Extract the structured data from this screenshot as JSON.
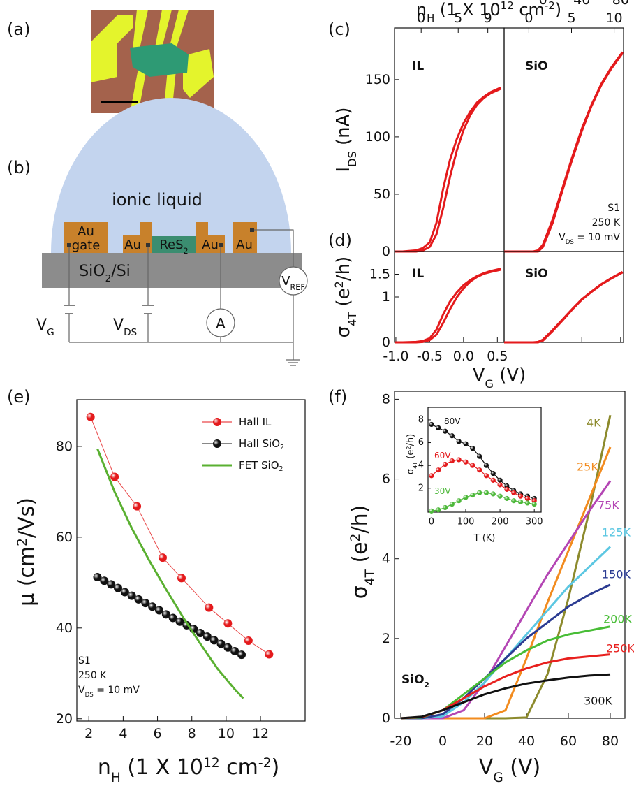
{
  "panel_a": {
    "label": "(a)"
  },
  "panel_b": {
    "label": "(b)",
    "liquid": "ionic liquid",
    "gate_metal": "Au",
    "gate": "gate",
    "electrodes": [
      "Au",
      "Au",
      "Au"
    ],
    "channel": [
      "ReS",
      {
        "text": "2",
        "shift": "sub"
      }
    ],
    "substrate": [
      "SiO",
      {
        "text": "2",
        "shift": "sub"
      },
      "/Si"
    ],
    "vg": [
      "V",
      {
        "text": "G",
        "shift": "sub"
      }
    ],
    "vds": [
      "V",
      {
        "text": "DS",
        "shift": "sub"
      }
    ],
    "ammeter": "A",
    "vref": [
      "V",
      {
        "text": "REF",
        "shift": "sub"
      }
    ]
  },
  "chart_data": [
    {
      "type": "line",
      "panel_label": "(c)",
      "text": "IL",
      "ylabel": [
        "I",
        {
          "text": "DS",
          "shift": "sub"
        },
        " (nA)"
      ],
      "x2label": [
        "n",
        {
          "text": "H",
          "shift": "sub"
        },
        " (1 X 10",
        {
          "text": "12",
          "shift": "sup"
        },
        " cm",
        {
          "text": "-2",
          "shift": "sup"
        },
        ")"
      ],
      "x": [
        -1.02,
        -0.9,
        -0.7,
        -0.6,
        -0.5,
        -0.4,
        -0.3,
        -0.2,
        -0.1,
        0,
        0.1,
        0.2,
        0.3,
        0.4,
        0.55
      ],
      "series": [
        {
          "color": "#e41a1c",
          "values": [
            0,
            0,
            1,
            3,
            8,
            25,
            55,
            80,
            98,
            112,
            122,
            130,
            135,
            139,
            143
          ]
        },
        {
          "color": "#e41a1c",
          "values": [
            0,
            0,
            0,
            1,
            4,
            15,
            38,
            65,
            88,
            106,
            119,
            128,
            134,
            138,
            142
          ]
        }
      ],
      "xlim": [
        -1.02,
        0.6
      ],
      "ylim": [
        0,
        195
      ],
      "yticks": [
        0,
        50,
        100,
        150
      ],
      "x2lim": [
        -3.6,
        11.2
      ],
      "x2ticks": [
        0,
        5,
        9
      ]
    },
    {
      "type": "line",
      "text": "SiO",
      "annotations": [
        "S1",
        "250 K",
        [
          "V",
          {
            "text": "DS",
            "shift": "sub"
          },
          " = 10 mV"
        ]
      ],
      "x": [
        -40,
        -20,
        -10,
        -5,
        0,
        10,
        20,
        30,
        40,
        50,
        60,
        70,
        82
      ],
      "series": [
        {
          "color": "#e41a1c",
          "values": [
            0,
            0,
            0,
            1,
            6,
            28,
            55,
            82,
            107,
            128,
            146,
            160,
            174
          ]
        },
        {
          "color": "#e41a1c",
          "values": [
            0,
            0,
            0,
            0,
            4,
            25,
            53,
            80,
            105,
            127,
            145,
            159,
            173
          ]
        }
      ],
      "xlim": [
        -40,
        83
      ],
      "ylim": [
        0,
        195
      ],
      "x2lim": [
        -2.9,
        11.1
      ],
      "x2ticks": [
        0,
        5,
        10
      ]
    },
    {
      "type": "line",
      "panel_label": "(d)",
      "text": "IL",
      "ylabel": [
        "σ",
        {
          "text": "4T",
          "shift": "sub"
        },
        " (e",
        {
          "text": "2",
          "shift": "sup"
        },
        "/h)"
      ],
      "xlabel": [
        "V",
        {
          "text": "G",
          "shift": "sub"
        },
        " (V)"
      ],
      "x": [
        -1.02,
        -0.9,
        -0.7,
        -0.6,
        -0.5,
        -0.4,
        -0.3,
        -0.2,
        -0.1,
        0,
        0.1,
        0.2,
        0.3,
        0.4,
        0.55
      ],
      "series": [
        {
          "color": "#e41a1c",
          "values": [
            0,
            0,
            0.01,
            0.03,
            0.09,
            0.28,
            0.62,
            0.9,
            1.1,
            1.26,
            1.37,
            1.46,
            1.52,
            1.57,
            1.62
          ]
        },
        {
          "color": "#e41a1c",
          "values": [
            0,
            0,
            0,
            0.01,
            0.05,
            0.17,
            0.43,
            0.73,
            0.99,
            1.19,
            1.34,
            1.44,
            1.51,
            1.55,
            1.6
          ]
        }
      ],
      "xlim": [
        -1.02,
        0.6
      ],
      "ylim": [
        0,
        2
      ],
      "yticks": [
        0,
        1,
        1.5
      ],
      "xticks": [
        {
          "value": -1,
          "label": "-1.0"
        },
        -0.5,
        {
          "value": 0,
          "label": "0.0"
        },
        0.5
      ]
    },
    {
      "type": "line",
      "text": "SiO",
      "x": [
        -40,
        -20,
        -10,
        -5,
        0,
        10,
        20,
        30,
        40,
        50,
        60,
        70,
        82
      ],
      "series": [
        {
          "color": "#e41a1c",
          "values": [
            0,
            0,
            0,
            0.01,
            0.06,
            0.27,
            0.5,
            0.73,
            0.95,
            1.12,
            1.28,
            1.41,
            1.55
          ]
        },
        {
          "color": "#e41a1c",
          "values": [
            0,
            0,
            0,
            0,
            0.04,
            0.25,
            0.48,
            0.72,
            0.94,
            1.11,
            1.27,
            1.4,
            1.54
          ]
        }
      ],
      "xlim": [
        -40,
        83
      ],
      "ylim": [
        0,
        2
      ],
      "xticks": [
        0,
        40,
        80
      ]
    },
    {
      "type": "line",
      "panel_label": "(e)",
      "xlabel": [
        "n",
        {
          "text": "H",
          "shift": "sub"
        },
        " (1 X 10",
        {
          "text": "12",
          "shift": "sup"
        },
        " cm",
        {
          "text": "-2",
          "shift": "sup"
        },
        ")"
      ],
      "ylabel": [
        "μ (cm",
        {
          "text": "2",
          "shift": "sup"
        },
        "/Vs)"
      ],
      "annotations": [
        "S1",
        "250 K",
        [
          "V",
          {
            "text": "DS",
            "shift": "sub"
          },
          " = 10 mV"
        ]
      ],
      "legend": "upper right",
      "series": [
        {
          "name": "Hall IL",
          "color": "#e41a1c",
          "markers": true,
          "x": [
            2.1,
            3.5,
            4.8,
            6.3,
            7.4,
            9,
            10.1,
            11.3,
            12.5
          ],
          "values": [
            86.5,
            73.3,
            66.8,
            55.5,
            51,
            44.5,
            41,
            37.2,
            34.2
          ]
        },
        {
          "name": [
            "Hall SiO",
            {
              "text": "2",
              "shift": "sub"
            }
          ],
          "color": "#111111",
          "markers": true,
          "x": [
            2.5,
            2.9,
            3.3,
            3.7,
            4.1,
            4.5,
            4.9,
            5.3,
            5.7,
            6.1,
            6.5,
            6.9,
            7.3,
            7.7,
            8.1,
            8.5,
            8.9,
            9.3,
            9.7,
            10.1,
            10.5,
            10.9
          ],
          "values": [
            51.2,
            50.4,
            49.6,
            48.8,
            47.9,
            47.1,
            46.3,
            45.5,
            44.7,
            43.9,
            43.0,
            42.2,
            41.4,
            40.6,
            39.8,
            38.9,
            38.1,
            37.3,
            36.5,
            35.7,
            34.9,
            34.1
          ]
        },
        {
          "name": [
            "FET SiO",
            {
              "text": "2",
              "shift": "sub"
            }
          ],
          "color": "#5ab031",
          "markers": false,
          "x": [
            2.5,
            3.5,
            4.5,
            5.5,
            6.5,
            7.5,
            8.5,
            9.5,
            10.5,
            11
          ],
          "values": [
            79.5,
            70,
            62,
            55,
            48.5,
            42.3,
            36.5,
            31,
            26.5,
            24.5
          ]
        }
      ],
      "xlim": [
        1.3,
        14.6
      ],
      "ylim": [
        19.5,
        90.3
      ],
      "xticks": [
        2,
        4,
        6,
        8,
        10,
        12
      ],
      "yticks": [
        20,
        40,
        60,
        80
      ]
    },
    {
      "type": "line",
      "panel_label": "(f)",
      "text": [
        "SiO",
        {
          "text": "2",
          "shift": "sub"
        }
      ],
      "xlabel": [
        "V",
        {
          "text": "G",
          "shift": "sub"
        },
        " (V)"
      ],
      "ylabel": [
        "σ",
        {
          "text": "4T",
          "shift": "sub"
        },
        " (e",
        {
          "text": "2",
          "shift": "sup"
        },
        "/h)"
      ],
      "x": [
        -20,
        -10,
        0,
        10,
        20,
        30,
        40,
        50,
        60,
        70,
        80
      ],
      "series": [
        {
          "name": "4K",
          "color": "#8c8a2c",
          "values": [
            0,
            0,
            0,
            0,
            0,
            0,
            0.02,
            1.1,
            3.0,
            5.2,
            7.6
          ]
        },
        {
          "name": "25K",
          "color": "#f28b1e",
          "values": [
            0,
            0,
            0,
            0,
            0,
            0.2,
            1.5,
            2.9,
            4.2,
            5.5,
            6.8
          ]
        },
        {
          "name": "75K",
          "color": "#b446b4",
          "values": [
            0,
            0,
            0,
            0.2,
            0.9,
            1.8,
            2.7,
            3.6,
            4.4,
            5.2,
            5.95
          ]
        },
        {
          "name": "125K",
          "color": "#5cc7e2",
          "values": [
            0,
            0,
            0.05,
            0.4,
            0.9,
            1.5,
            2.1,
            2.7,
            3.3,
            3.8,
            4.3
          ]
        },
        {
          "name": "150K",
          "color": "#2c3c92",
          "values": [
            0,
            0,
            0.1,
            0.5,
            1.0,
            1.5,
            2.0,
            2.4,
            2.8,
            3.1,
            3.35
          ]
        },
        {
          "name": "200K",
          "color": "#48bd36",
          "values": [
            0,
            0.02,
            0.2,
            0.6,
            1.0,
            1.4,
            1.7,
            1.95,
            2.1,
            2.2,
            2.3
          ]
        },
        {
          "name": "250K",
          "color": "#e8201e",
          "values": [
            0,
            0.03,
            0.2,
            0.5,
            0.8,
            1.05,
            1.25,
            1.4,
            1.5,
            1.55,
            1.6
          ]
        },
        {
          "name": "300K",
          "color": "#111111",
          "values": [
            0,
            0.04,
            0.2,
            0.4,
            0.6,
            0.75,
            0.87,
            0.95,
            1.02,
            1.07,
            1.1
          ]
        }
      ],
      "xlim": [
        -23,
        87
      ],
      "ylim": [
        0,
        8.2
      ],
      "xticks": [
        -20,
        0,
        20,
        40,
        60,
        80
      ],
      "yticks": [
        0,
        2,
        4,
        6,
        8
      ]
    },
    {
      "type": "line",
      "xlabel": "T (K)",
      "ylabel": [
        "σ",
        {
          "text": "4T",
          "shift": "sub"
        },
        " (e",
        {
          "text": "2",
          "shift": "sup"
        },
        "/h)"
      ],
      "x": [
        0,
        20,
        40,
        60,
        80,
        100,
        120,
        140,
        160,
        180,
        200,
        220,
        240,
        260,
        280,
        300
      ],
      "series": [
        {
          "name": "80V",
          "color": "#111111",
          "markers": true,
          "values": [
            7.6,
            7.3,
            7.0,
            6.6,
            6.1,
            5.9,
            5.5,
            4.8,
            4.0,
            3.3,
            2.7,
            2.2,
            1.8,
            1.5,
            1.3,
            1.1
          ]
        },
        {
          "name": "60V",
          "color": "#e41a1c",
          "markers": true,
          "values": [
            3.1,
            3.6,
            4.1,
            4.4,
            4.5,
            4.3,
            4.0,
            3.6,
            3.1,
            2.7,
            2.3,
            1.9,
            1.6,
            1.3,
            1.1,
            0.9
          ]
        },
        {
          "name": "30V",
          "color": "#4db83a",
          "markers": true,
          "values": [
            0,
            0.1,
            0.3,
            0.6,
            0.9,
            1.2,
            1.4,
            1.6,
            1.6,
            1.5,
            1.3,
            1.1,
            0.9,
            0.8,
            0.7,
            0.6
          ]
        }
      ],
      "xlim": [
        -10,
        320
      ],
      "ylim": [
        -0.1,
        9.1
      ],
      "xticks": [
        0,
        100,
        200,
        300
      ],
      "yticks": [
        2,
        4,
        6,
        8
      ]
    }
  ]
}
